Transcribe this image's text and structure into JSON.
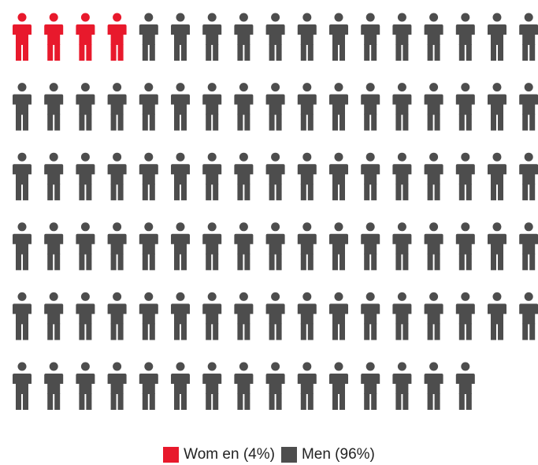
{
  "chart_data": {
    "type": "pictograph",
    "title": "",
    "unit_icon": "person-icon",
    "total_icons": 100,
    "rows": 6,
    "icons_per_row": 17,
    "series": [
      {
        "name": "Wom en (4%)",
        "category": "Women",
        "percent": 4,
        "count": 4,
        "color": "#e8192c"
      },
      {
        "name": "Men (96%)",
        "category": "Men",
        "percent": 96,
        "count": 96,
        "color": "#4d4d4d"
      }
    ],
    "legend_position": "bottom-center"
  }
}
